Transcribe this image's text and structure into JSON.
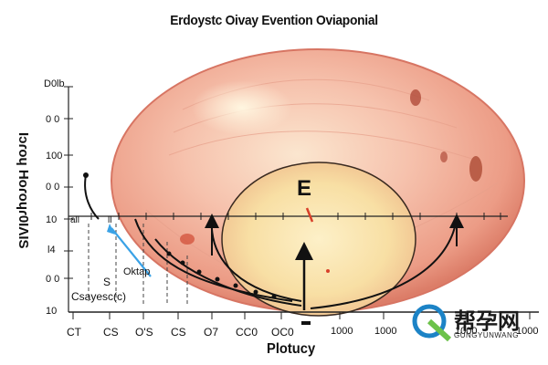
{
  "title": "Erdoystc Oivay Evention Oviaponial",
  "y_axis": {
    "label": "Iɔɾoɥ Hoɾoɥɾ0IΛIS",
    "ticks": [
      "D0lb",
      "0 0",
      "100",
      "0 0",
      "10",
      "l4",
      "0 0",
      "10"
    ],
    "inline_ticks": [
      "all",
      "ll"
    ]
  },
  "x_axis": {
    "label": "Plotucy",
    "ticks": [
      "CT",
      "CS",
      "O'S",
      "CS",
      "O7",
      "CC0",
      "OC0",
      "1000",
      "1000",
      "1000",
      "1000"
    ]
  },
  "annotations": {
    "center_letter": "E",
    "label_s": "S",
    "label_oktap": "Oktap",
    "label_csayes": "Csayesc(c)"
  },
  "watermark": {
    "text": "帮孕网",
    "sub": "GUNGYUNWANG"
  },
  "colors": {
    "ellipse_outer": "#f0a592",
    "ellipse_edge": "#d77563",
    "inner_core": "#f7dca0",
    "arrow_blue": "#3aa2e6",
    "mark_red": "#d8402a"
  }
}
